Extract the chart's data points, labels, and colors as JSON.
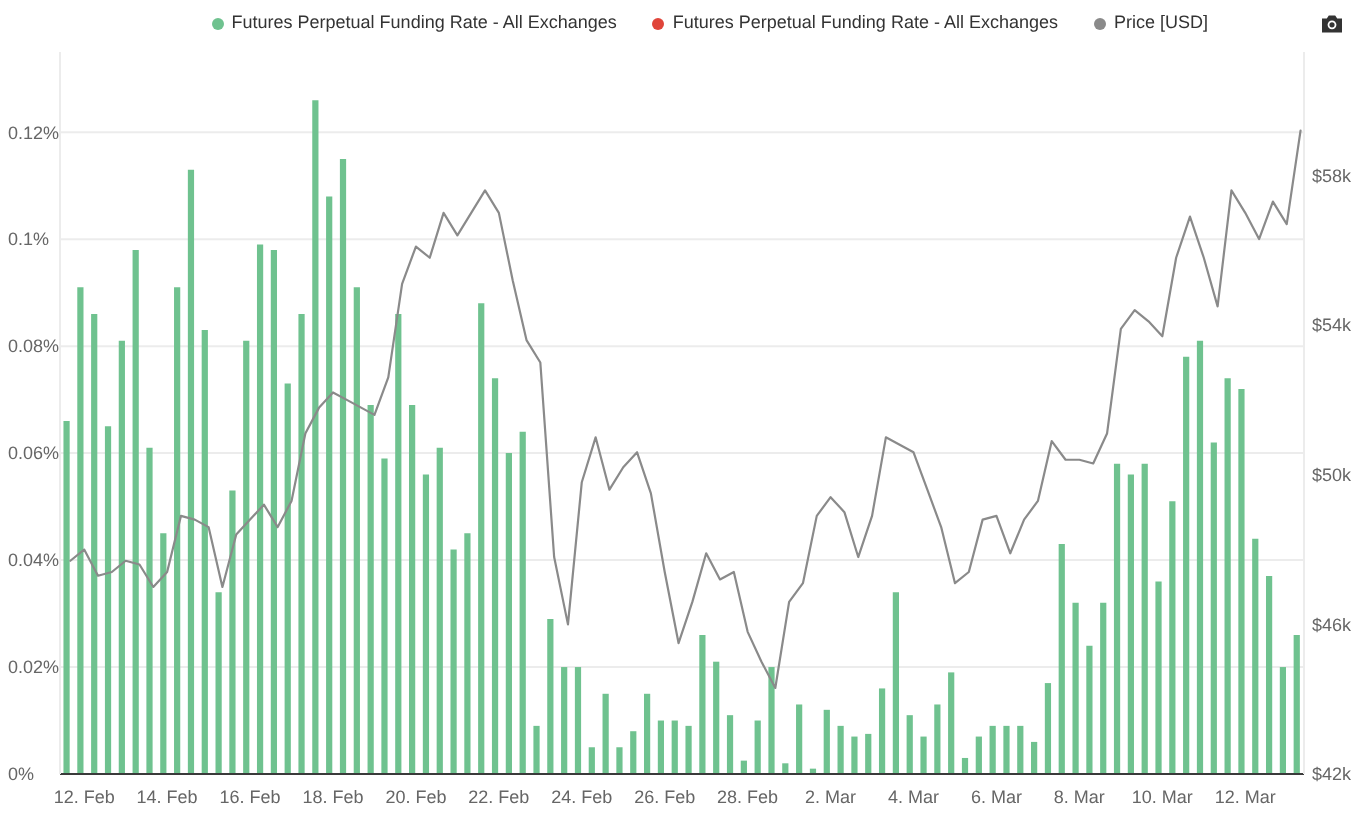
{
  "chart_data": {
    "type": "bar",
    "x": [
      "--02-11T16:00",
      "--02-12T00:00",
      "--02-12T08:00",
      "--02-12T16:00",
      "--02-13T00:00",
      "--02-13T08:00",
      "--02-13T16:00",
      "--02-14T00:00",
      "--02-14T08:00",
      "--02-14T16:00",
      "--02-15T00:00",
      "--02-15T08:00",
      "--02-15T16:00",
      "--02-16T00:00",
      "--02-16T08:00",
      "--02-16T16:00",
      "--02-17T00:00",
      "--02-17T08:00",
      "--02-17T16:00",
      "--02-18T00:00",
      "--02-18T08:00",
      "--02-18T16:00",
      "--02-19T00:00",
      "--02-19T08:00",
      "--02-19T16:00",
      "--02-20T00:00",
      "--02-20T08:00",
      "--02-20T16:00",
      "--02-21T00:00",
      "--02-21T08:00",
      "--02-21T16:00",
      "--02-22T00:00",
      "--02-22T08:00",
      "--02-22T16:00",
      "--02-23T00:00",
      "--02-23T08:00",
      "--02-23T16:00",
      "--02-24T00:00",
      "--02-24T08:00",
      "--02-24T16:00",
      "--02-25T00:00",
      "--02-25T08:00",
      "--02-25T16:00",
      "--02-26T00:00",
      "--02-26T08:00",
      "--02-26T16:00",
      "--02-27T00:00",
      "--02-27T08:00",
      "--02-27T16:00",
      "--02-28T00:00",
      "--02-28T08:00",
      "--02-28T16:00",
      "--03-01T00:00",
      "--03-01T08:00",
      "--03-01T16:00",
      "--03-02T00:00",
      "--03-02T08:00",
      "--03-02T16:00",
      "--03-03T00:00",
      "--03-03T08:00",
      "--03-03T16:00",
      "--03-04T00:00",
      "--03-04T08:00",
      "--03-04T16:00",
      "--03-05T00:00",
      "--03-05T08:00",
      "--03-05T16:00",
      "--03-06T00:00",
      "--03-06T08:00",
      "--03-06T16:00",
      "--03-07T00:00",
      "--03-07T08:00",
      "--03-07T16:00",
      "--03-08T00:00",
      "--03-08T08:00",
      "--03-08T16:00",
      "--03-09T00:00",
      "--03-09T08:00",
      "--03-09T16:00",
      "--03-10T00:00",
      "--03-10T08:00",
      "--03-10T16:00",
      "--03-11T00:00",
      "--03-11T08:00",
      "--03-11T16:00",
      "--03-12T00:00",
      "--03-12T08:00",
      "--03-12T16:00",
      "--03-13T00:00",
      "--03-13T08:00"
    ],
    "series": [
      {
        "name": "Futures Perpetual Funding Rate - All Exchanges",
        "color": "#6fc28f",
        "values": [
          0.066,
          0.091,
          0.086,
          0.065,
          0.081,
          0.098,
          0.061,
          0.045,
          0.091,
          0.113,
          0.083,
          0.034,
          0.053,
          0.081,
          0.099,
          0.098,
          0.073,
          0.086,
          0.126,
          0.108,
          0.115,
          0.091,
          0.069,
          0.059,
          0.086,
          0.069,
          0.056,
          0.061,
          0.042,
          0.045,
          0.088,
          0.074,
          0.06,
          0.064,
          0.009,
          0.029,
          0.02,
          0.02,
          0.005,
          0.015,
          0.005,
          0.008,
          0.015,
          0.01,
          0.01,
          0.009,
          0.026,
          0.021,
          0.011,
          0.0025,
          0.01,
          0.02,
          0.002,
          0.013,
          0.001,
          0.012,
          0.009,
          0.007,
          0.0075,
          0.016,
          0.034,
          0.011,
          0.007,
          0.013,
          0.019,
          0.003,
          0.007,
          0.009,
          0.009,
          0.009,
          0.006,
          0.017,
          0.043,
          0.032,
          0.024,
          0.032,
          0.058,
          0.056,
          0.058,
          0.036,
          0.051,
          0.078,
          0.081,
          0.062,
          0.074,
          0.072,
          0.044,
          0.037,
          0.02,
          0.026
        ]
      },
      {
        "name": "Futures Perpetual Funding Rate - All Exchanges",
        "color": "#e0453a",
        "values": [
          null,
          null,
          null,
          null,
          null,
          null,
          null,
          null,
          null,
          null,
          null,
          null,
          null,
          null,
          null,
          null,
          null,
          null,
          null,
          null,
          null,
          null,
          null,
          null,
          null,
          null,
          null,
          null,
          null,
          null,
          null,
          null,
          null,
          null,
          null,
          null,
          null,
          null,
          null,
          null,
          null,
          null,
          null,
          null,
          null,
          null,
          null,
          null,
          null,
          null,
          null,
          null,
          null,
          null,
          null,
          null,
          null,
          null,
          null,
          null,
          null,
          null,
          null,
          null,
          null,
          null,
          null,
          null,
          null,
          null,
          null,
          null,
          null,
          null,
          null,
          null,
          null,
          null,
          null,
          null,
          null,
          null,
          null,
          null,
          null,
          null,
          null,
          null,
          null,
          null
        ]
      },
      {
        "name": "Price [USD]",
        "type": "line",
        "axis": "y2",
        "color": "#8a8a8a",
        "values": [
          47700,
          48000,
          47300,
          47400,
          47700,
          47600,
          47000,
          47400,
          48900,
          48800,
          48600,
          47000,
          48400,
          48800,
          49200,
          48600,
          49300,
          51100,
          51800,
          52200,
          52000,
          51800,
          51600,
          52600,
          55100,
          56100,
          55800,
          57000,
          56400,
          57000,
          57600,
          57000,
          55200,
          53600,
          53000,
          47800,
          46000,
          49800,
          51000,
          49600,
          50200,
          50600,
          49500,
          47400,
          45500,
          46600,
          47900,
          47200,
          47400,
          45800,
          45000,
          44300,
          46600,
          47100,
          48900,
          49400,
          49000,
          47800,
          48900,
          51000,
          50800,
          50600,
          49600,
          48600,
          47100,
          47400,
          48800,
          48900,
          47900,
          48800,
          49300,
          50900,
          50400,
          50400,
          50300,
          51100,
          53900,
          54400,
          54100,
          53700,
          55800,
          56900,
          55800,
          54500,
          57600,
          57000,
          56300,
          57300,
          56700,
          59200
        ]
      }
    ],
    "xlim": [
      "--02-11T10:00",
      "--03-13T10:00"
    ],
    "xticks": [
      {
        "value": "--02-12",
        "label": "12. Feb"
      },
      {
        "value": "--02-14",
        "label": "14. Feb"
      },
      {
        "value": "--02-16",
        "label": "16. Feb"
      },
      {
        "value": "--02-18",
        "label": "18. Feb"
      },
      {
        "value": "--02-20",
        "label": "20. Feb"
      },
      {
        "value": "--02-22",
        "label": "22. Feb"
      },
      {
        "value": "--02-24",
        "label": "24. Feb"
      },
      {
        "value": "--02-26",
        "label": "26. Feb"
      },
      {
        "value": "--02-28",
        "label": "28. Feb"
      },
      {
        "value": "--03-02",
        "label": "2. Mar"
      },
      {
        "value": "--03-04",
        "label": "4. Mar"
      },
      {
        "value": "--03-06",
        "label": "6. Mar"
      },
      {
        "value": "--03-08",
        "label": "8. Mar"
      },
      {
        "value": "--03-10",
        "label": "10. Mar"
      },
      {
        "value": "--03-12",
        "label": "12. Mar"
      }
    ],
    "ylim": [
      0,
      0.135
    ],
    "yticks": [
      {
        "value": 0,
        "label": "0%"
      },
      {
        "value": 0.02,
        "label": "0.02%"
      },
      {
        "value": 0.04,
        "label": "0.04%"
      },
      {
        "value": 0.06,
        "label": "0.06%"
      },
      {
        "value": 0.08,
        "label": "0.08%"
      },
      {
        "value": 0.1,
        "label": "0.1%"
      },
      {
        "value": 0.12,
        "label": "0.12%"
      }
    ],
    "y2lim": [
      42000,
      61300
    ],
    "y2ticks": [
      {
        "value": 42000,
        "label": "$42k"
      },
      {
        "value": 46000,
        "label": "$46k"
      },
      {
        "value": 50000,
        "label": "$50k"
      },
      {
        "value": 54000,
        "label": "$54k"
      },
      {
        "value": 58000,
        "label": "$58k"
      }
    ],
    "grid": "y",
    "legend": "top right"
  }
}
